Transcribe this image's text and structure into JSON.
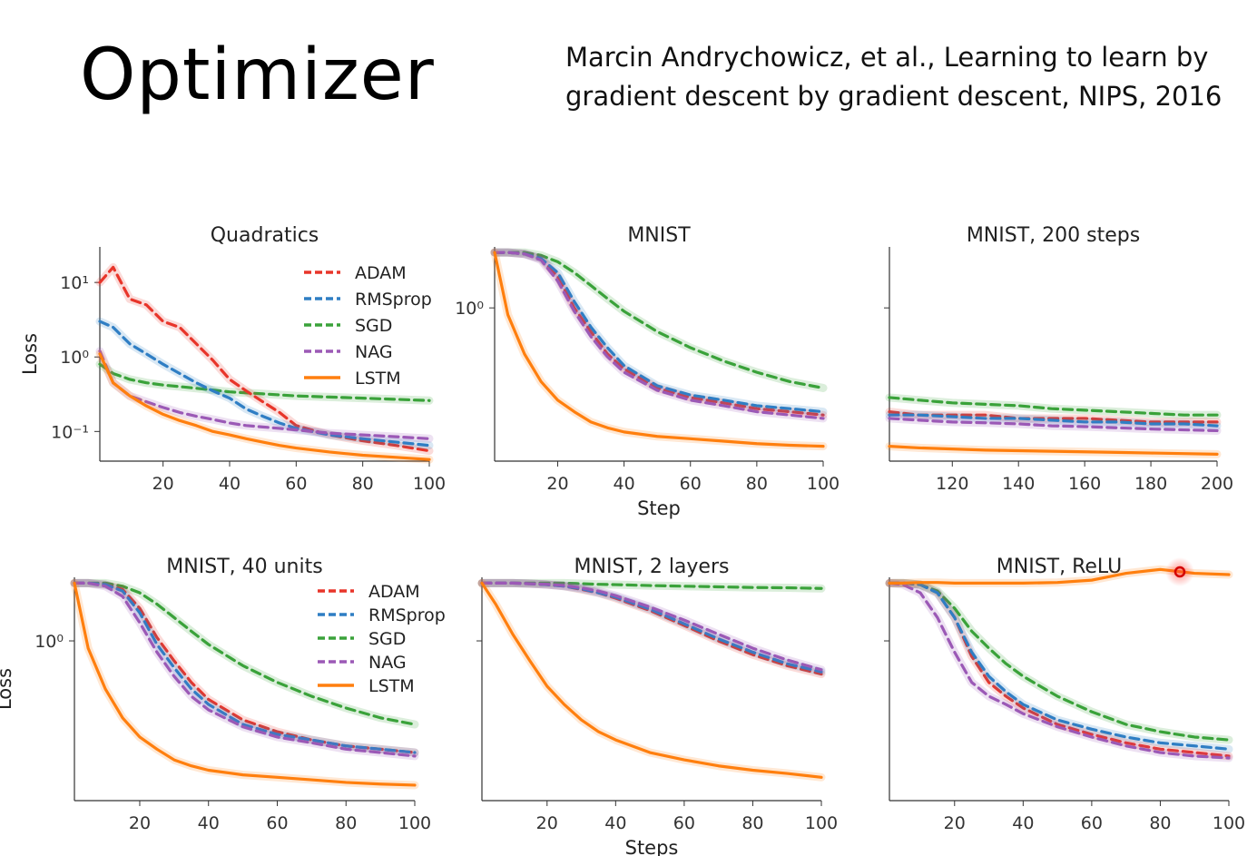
{
  "slide": {
    "title": "Optimizer",
    "citation_line1": "Marcin Andrychowicz, et al., Learning to learn by",
    "citation_line2": "gradient descent by gradient descent, NIPS, 2016"
  },
  "colors": {
    "ADAM": "#e8352a",
    "RMSprop": "#2f7ec4",
    "SGD": "#3aa23a",
    "NAG": "#9b59b6",
    "LSTM": "#ff7f0e"
  },
  "chart_data": [
    {
      "type": "line",
      "title": "Quadratics",
      "xlabel": "",
      "ylabel": "Loss",
      "log_y": true,
      "xlim": [
        1,
        100
      ],
      "ylim": [
        0.04,
        30
      ],
      "xticks": [
        20,
        40,
        60,
        80,
        100
      ],
      "yticks": [
        {
          "value": 10,
          "label": "10¹"
        },
        {
          "value": 1,
          "label": "10⁰"
        },
        {
          "value": 0.1,
          "label": "10⁻¹"
        }
      ],
      "legend": "top-right",
      "x": [
        1,
        5,
        10,
        15,
        20,
        25,
        30,
        35,
        40,
        45,
        50,
        55,
        60,
        70,
        80,
        90,
        100
      ],
      "series": [
        {
          "name": "ADAM",
          "values": [
            10,
            16,
            6,
            5,
            3,
            2.5,
            1.5,
            0.9,
            0.5,
            0.35,
            0.25,
            0.18,
            0.12,
            0.09,
            0.075,
            0.065,
            0.055
          ]
        },
        {
          "name": "RMSprop",
          "values": [
            3,
            2.5,
            1.5,
            1.1,
            0.8,
            0.6,
            0.45,
            0.35,
            0.28,
            0.2,
            0.16,
            0.13,
            0.11,
            0.09,
            0.08,
            0.072,
            0.065
          ]
        },
        {
          "name": "SGD",
          "values": [
            0.8,
            0.6,
            0.5,
            0.45,
            0.42,
            0.4,
            0.38,
            0.36,
            0.34,
            0.33,
            0.32,
            0.31,
            0.3,
            0.29,
            0.28,
            0.27,
            0.26
          ]
        },
        {
          "name": "NAG",
          "values": [
            1.2,
            0.45,
            0.3,
            0.25,
            0.21,
            0.18,
            0.16,
            0.145,
            0.13,
            0.12,
            0.115,
            0.11,
            0.105,
            0.095,
            0.09,
            0.085,
            0.08
          ]
        },
        {
          "name": "LSTM",
          "values": [
            1.1,
            0.45,
            0.3,
            0.22,
            0.17,
            0.14,
            0.12,
            0.1,
            0.09,
            0.08,
            0.072,
            0.065,
            0.06,
            0.053,
            0.048,
            0.045,
            0.042
          ]
        }
      ]
    },
    {
      "type": "line",
      "title": "MNIST",
      "xlabel": "Step",
      "ylabel": "",
      "log_y": true,
      "xlim": [
        1,
        100
      ],
      "ylim": [
        0.1,
        2.5
      ],
      "xticks": [
        20,
        40,
        60,
        80,
        100
      ],
      "yticks": [
        {
          "value": 1,
          "label": "10⁰"
        }
      ],
      "x": [
        1,
        5,
        10,
        15,
        20,
        25,
        30,
        35,
        40,
        50,
        60,
        70,
        80,
        90,
        100
      ],
      "series": [
        {
          "name": "ADAM",
          "values": [
            2.3,
            2.3,
            2.25,
            2.1,
            1.6,
            1.0,
            0.7,
            0.5,
            0.4,
            0.3,
            0.26,
            0.24,
            0.22,
            0.21,
            0.2
          ]
        },
        {
          "name": "RMSprop",
          "values": [
            2.3,
            2.3,
            2.25,
            2.1,
            1.7,
            1.1,
            0.75,
            0.55,
            0.42,
            0.31,
            0.27,
            0.25,
            0.23,
            0.22,
            0.21
          ]
        },
        {
          "name": "SGD",
          "values": [
            2.3,
            2.3,
            2.3,
            2.2,
            2.0,
            1.7,
            1.4,
            1.15,
            0.95,
            0.7,
            0.55,
            0.45,
            0.38,
            0.33,
            0.3
          ]
        },
        {
          "name": "NAG",
          "values": [
            2.3,
            2.3,
            2.25,
            2.05,
            1.5,
            0.95,
            0.65,
            0.48,
            0.38,
            0.29,
            0.25,
            0.23,
            0.21,
            0.2,
            0.19
          ]
        },
        {
          "name": "LSTM",
          "values": [
            2.3,
            0.9,
            0.5,
            0.33,
            0.25,
            0.21,
            0.18,
            0.165,
            0.155,
            0.145,
            0.14,
            0.135,
            0.13,
            0.127,
            0.125
          ]
        }
      ]
    },
    {
      "type": "line",
      "title": "MNIST, 200 steps",
      "xlabel": "",
      "ylabel": "",
      "log_y": true,
      "xlim": [
        101,
        200
      ],
      "ylim": [
        0.1,
        2.5
      ],
      "xticks": [
        120,
        140,
        160,
        180,
        200
      ],
      "yticks": [
        {
          "value": 1,
          "label": ""
        }
      ],
      "x": [
        101,
        110,
        120,
        130,
        140,
        150,
        160,
        170,
        180,
        190,
        200
      ],
      "series": [
        {
          "name": "ADAM",
          "values": [
            0.21,
            0.2,
            0.2,
            0.2,
            0.19,
            0.19,
            0.19,
            0.185,
            0.18,
            0.18,
            0.18
          ]
        },
        {
          "name": "RMSprop",
          "values": [
            0.2,
            0.2,
            0.195,
            0.19,
            0.19,
            0.185,
            0.18,
            0.18,
            0.175,
            0.175,
            0.17
          ]
        },
        {
          "name": "SGD",
          "values": [
            0.26,
            0.25,
            0.24,
            0.235,
            0.23,
            0.22,
            0.215,
            0.21,
            0.205,
            0.2,
            0.2
          ]
        },
        {
          "name": "NAG",
          "values": [
            0.19,
            0.185,
            0.18,
            0.178,
            0.175,
            0.17,
            0.168,
            0.165,
            0.162,
            0.16,
            0.158
          ]
        },
        {
          "name": "LSTM",
          "values": [
            0.125,
            0.122,
            0.12,
            0.118,
            0.117,
            0.116,
            0.115,
            0.114,
            0.113,
            0.112,
            0.111
          ]
        }
      ]
    },
    {
      "type": "line",
      "title": "MNIST, 40 units",
      "xlabel": "",
      "ylabel": "Loss",
      "log_y": true,
      "xlim": [
        1,
        100
      ],
      "ylim": [
        0.1,
        2.5
      ],
      "xticks": [
        20,
        40,
        60,
        80,
        100
      ],
      "yticks": [
        {
          "value": 1,
          "label": "10⁰"
        }
      ],
      "legend": "top-right",
      "x": [
        1,
        5,
        10,
        15,
        20,
        25,
        30,
        35,
        40,
        50,
        60,
        70,
        80,
        90,
        100
      ],
      "series": [
        {
          "name": "ADAM",
          "values": [
            2.3,
            2.3,
            2.25,
            2.1,
            1.6,
            1.05,
            0.75,
            0.55,
            0.43,
            0.32,
            0.27,
            0.24,
            0.22,
            0.21,
            0.2
          ]
        },
        {
          "name": "RMSprop",
          "values": [
            2.3,
            2.3,
            2.25,
            2.05,
            1.5,
            0.95,
            0.68,
            0.5,
            0.4,
            0.3,
            0.26,
            0.24,
            0.22,
            0.21,
            0.2
          ]
        },
        {
          "name": "SGD",
          "values": [
            2.3,
            2.3,
            2.3,
            2.2,
            2.0,
            1.7,
            1.4,
            1.15,
            0.95,
            0.7,
            0.55,
            0.45,
            0.38,
            0.33,
            0.3
          ]
        },
        {
          "name": "NAG",
          "values": [
            2.3,
            2.3,
            2.2,
            1.9,
            1.3,
            0.85,
            0.6,
            0.45,
            0.37,
            0.29,
            0.25,
            0.23,
            0.21,
            0.2,
            0.19
          ]
        },
        {
          "name": "LSTM",
          "values": [
            2.3,
            0.9,
            0.5,
            0.33,
            0.25,
            0.21,
            0.18,
            0.165,
            0.155,
            0.145,
            0.14,
            0.135,
            0.13,
            0.127,
            0.125
          ]
        }
      ]
    },
    {
      "type": "line",
      "title": "MNIST, 2 layers",
      "xlabel": "Steps",
      "ylabel": "",
      "log_y": true,
      "xlim": [
        1,
        100
      ],
      "ylim": [
        0.1,
        2.5
      ],
      "xticks": [
        20,
        40,
        60,
        80,
        100
      ],
      "yticks": [
        {
          "value": 1,
          "label": ""
        }
      ],
      "x": [
        1,
        5,
        10,
        15,
        20,
        25,
        30,
        35,
        40,
        50,
        60,
        70,
        80,
        90,
        100
      ],
      "series": [
        {
          "name": "ADAM",
          "values": [
            2.3,
            2.3,
            2.3,
            2.28,
            2.25,
            2.2,
            2.1,
            2.0,
            1.85,
            1.55,
            1.25,
            1.0,
            0.82,
            0.7,
            0.62
          ]
        },
        {
          "name": "RMSprop",
          "values": [
            2.3,
            2.3,
            2.3,
            2.28,
            2.25,
            2.2,
            2.12,
            2.0,
            1.88,
            1.58,
            1.28,
            1.03,
            0.85,
            0.72,
            0.64
          ]
        },
        {
          "name": "SGD",
          "values": [
            2.3,
            2.3,
            2.3,
            2.3,
            2.3,
            2.3,
            2.28,
            2.26,
            2.25,
            2.22,
            2.2,
            2.18,
            2.16,
            2.15,
            2.13
          ]
        },
        {
          "name": "NAG",
          "values": [
            2.3,
            2.3,
            2.3,
            2.28,
            2.26,
            2.22,
            2.15,
            2.05,
            1.92,
            1.63,
            1.35,
            1.1,
            0.9,
            0.76,
            0.66
          ]
        },
        {
          "name": "LSTM",
          "values": [
            2.3,
            1.7,
            1.1,
            0.75,
            0.52,
            0.4,
            0.32,
            0.27,
            0.24,
            0.2,
            0.18,
            0.165,
            0.155,
            0.148,
            0.14
          ]
        }
      ]
    },
    {
      "type": "line",
      "title": "MNIST, ReLU",
      "xlabel": "",
      "ylabel": "",
      "log_y": true,
      "xlim": [
        1,
        100
      ],
      "ylim": [
        0.1,
        2.5
      ],
      "xticks": [
        20,
        40,
        60,
        80,
        100
      ],
      "yticks": [
        {
          "value": 1,
          "label": ""
        }
      ],
      "x": [
        1,
        5,
        10,
        15,
        20,
        25,
        30,
        35,
        40,
        50,
        60,
        70,
        80,
        90,
        100
      ],
      "series": [
        {
          "name": "ADAM",
          "values": [
            2.3,
            2.3,
            2.25,
            2.0,
            1.4,
            0.8,
            0.55,
            0.45,
            0.38,
            0.3,
            0.26,
            0.23,
            0.21,
            0.2,
            0.19
          ]
        },
        {
          "name": "RMSprop",
          "values": [
            2.3,
            2.3,
            2.25,
            2.0,
            1.4,
            0.85,
            0.6,
            0.48,
            0.4,
            0.32,
            0.28,
            0.25,
            0.23,
            0.22,
            0.21
          ]
        },
        {
          "name": "SGD",
          "values": [
            2.3,
            2.3,
            2.25,
            2.05,
            1.6,
            1.15,
            0.9,
            0.72,
            0.6,
            0.45,
            0.36,
            0.3,
            0.27,
            0.25,
            0.24
          ]
        },
        {
          "name": "NAG",
          "values": [
            2.3,
            2.25,
            2.0,
            1.4,
            0.85,
            0.55,
            0.45,
            0.4,
            0.35,
            0.29,
            0.25,
            0.22,
            0.2,
            0.19,
            0.185
          ]
        },
        {
          "name": "LSTM",
          "values": [
            2.3,
            2.3,
            2.32,
            2.32,
            2.3,
            2.3,
            2.3,
            2.3,
            2.3,
            2.32,
            2.4,
            2.65,
            2.8,
            2.65,
            2.6
          ]
        }
      ]
    }
  ]
}
